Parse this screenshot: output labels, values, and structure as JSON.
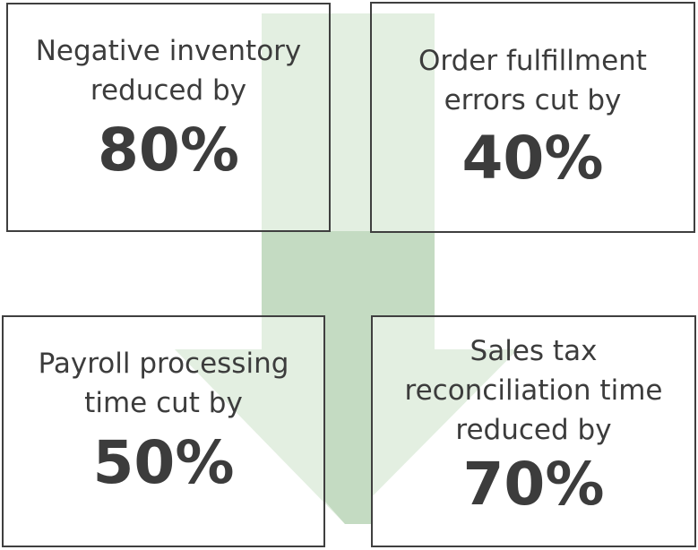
{
  "colors": {
    "arrow_light": "#e3efe1",
    "arrow_dark": "#c4dbc2",
    "border": "#3f3f3f",
    "text": "#3c3c3c"
  },
  "cards": [
    {
      "label": "Negative inventory\nreduced by",
      "value": "80%"
    },
    {
      "label": "Order fulfillment\nerrors cut by",
      "value": "40%"
    },
    {
      "label": "Payroll processing\ntime cut by",
      "value": "50%"
    },
    {
      "label": "Sales tax\nreconciliation time\nreduced by",
      "value": "70%"
    }
  ]
}
